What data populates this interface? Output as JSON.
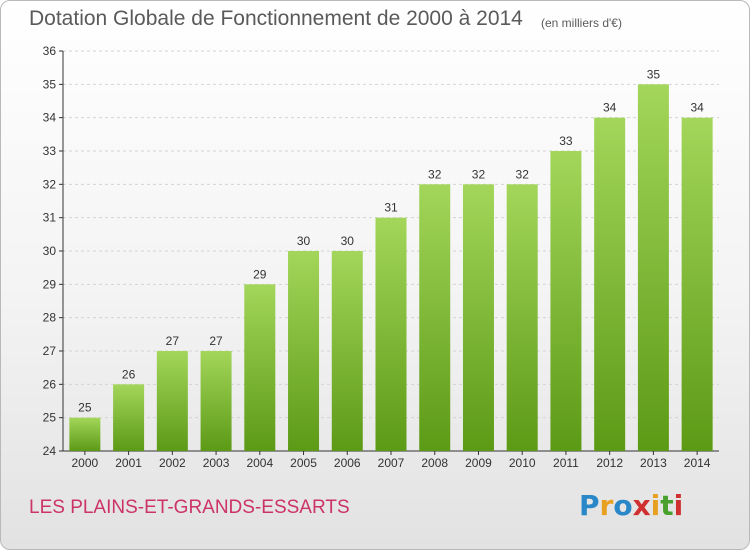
{
  "header": {
    "title": "Dotation Globale de Fonctionnement de 2000 à 2014",
    "subtitle": "(en milliers d'€)"
  },
  "footer": {
    "commune": "LES PLAINS-ET-GRANDS-ESSARTS",
    "logo": [
      "P",
      "r",
      "o",
      "x",
      "i",
      "t",
      "i"
    ],
    "logo_colors": [
      "#2a88c8",
      "#e8a020",
      "#2a88c8",
      "#d03030",
      "#e8a020",
      "#4aa02c",
      "#d03030"
    ]
  },
  "colors": {
    "bar_top": "#a3d65a",
    "bar_bottom": "#5c9a16",
    "grid": "#d4d4d4",
    "axis": "#333333",
    "label": "#333333"
  },
  "chart_data": {
    "type": "bar",
    "title": "Dotation Globale de Fonctionnement de 2000 à 2014",
    "subtitle": "(en milliers d'€)",
    "categories": [
      "2000",
      "2001",
      "2002",
      "2003",
      "2004",
      "2005",
      "2006",
      "2007",
      "2008",
      "2009",
      "2010",
      "2011",
      "2012",
      "2013",
      "2014"
    ],
    "values": [
      25,
      26,
      27,
      27,
      29,
      30,
      30,
      31,
      32,
      32,
      32,
      33,
      34,
      35,
      34
    ],
    "ylim": [
      24,
      36
    ],
    "yticks": [
      24,
      25,
      26,
      27,
      28,
      29,
      30,
      31,
      32,
      33,
      34,
      35,
      36
    ],
    "grid": true,
    "legend": "none"
  }
}
